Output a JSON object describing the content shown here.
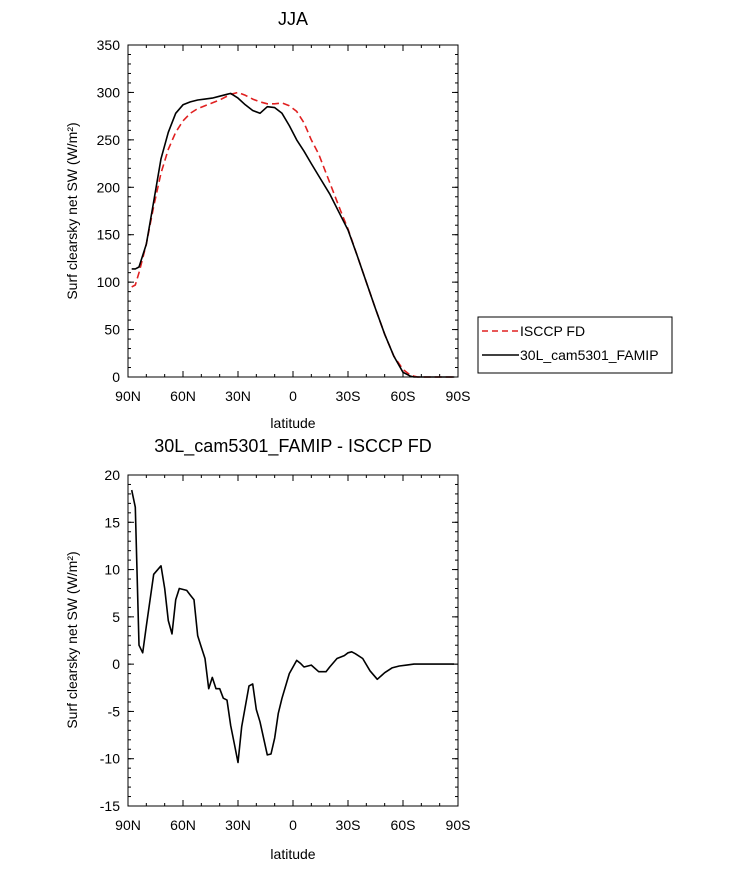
{
  "chart_data": [
    {
      "type": "line",
      "title": "JJA",
      "xlabel": "latitude",
      "ylabel": "Surf clearsky net SW (W/m²)",
      "ylim": [
        0,
        350
      ],
      "xlim": [
        90,
        -90
      ],
      "x_tick_labels": [
        "90N",
        "60N",
        "30N",
        "0",
        "30S",
        "60S",
        "90S"
      ],
      "y_tick_labels": [
        "0",
        "50",
        "100",
        "150",
        "200",
        "250",
        "300",
        "350"
      ],
      "legend_position": "right",
      "series": [
        {
          "name": "ISCCP FD",
          "color": "#e02020",
          "style": "dashed",
          "x": [
            88,
            86,
            84,
            80,
            76,
            72,
            68,
            64,
            60,
            56,
            52,
            48,
            44,
            40,
            36,
            34,
            30,
            26,
            22,
            18,
            14,
            10,
            6,
            2,
            -2,
            -6,
            -10,
            -14,
            -20,
            -26,
            -30,
            -35,
            -40,
            -45,
            -50,
            -55,
            -60,
            -64,
            -66,
            -68,
            -72,
            -76,
            -80,
            -84,
            -88
          ],
          "y": [
            95,
            97,
            110,
            140,
            180,
            215,
            240,
            258,
            270,
            278,
            283,
            286,
            289,
            292,
            296,
            298,
            300,
            297,
            293,
            290,
            288,
            288,
            289,
            286,
            280,
            268,
            250,
            235,
            205,
            175,
            156,
            128,
            100,
            72,
            45,
            22,
            8,
            2,
            1,
            0,
            0,
            0,
            0,
            0,
            0
          ]
        },
        {
          "name": "30L_cam5301_FAMIP",
          "color": "#000000",
          "style": "solid",
          "x": [
            88,
            86,
            84,
            80,
            76,
            72,
            68,
            64,
            60,
            56,
            52,
            48,
            44,
            40,
            36,
            34,
            30,
            26,
            22,
            18,
            14,
            10,
            6,
            2,
            -2,
            -6,
            -10,
            -14,
            -20,
            -26,
            -30,
            -35,
            -40,
            -45,
            -50,
            -55,
            -60,
            -64,
            -66,
            -68,
            -72,
            -76,
            -80,
            -84,
            -88
          ],
          "y": [
            114,
            114,
            116,
            140,
            185,
            230,
            258,
            278,
            287,
            290,
            292,
            293,
            294,
            296,
            298,
            299,
            294,
            287,
            281,
            278,
            285,
            284,
            278,
            265,
            250,
            238,
            225,
            212,
            193,
            170,
            155,
            128,
            100,
            72,
            45,
            22,
            5,
            1,
            0,
            0,
            0,
            0,
            0,
            0,
            0
          ]
        }
      ]
    },
    {
      "type": "line",
      "title": "30L_cam5301_FAMIP - ISCCP FD",
      "xlabel": "latitude",
      "ylabel": "Surf clearsky net SW (W/m²)",
      "ylim": [
        -15,
        20
      ],
      "xlim": [
        90,
        -90
      ],
      "x_tick_labels": [
        "90N",
        "60N",
        "30N",
        "0",
        "30S",
        "60S",
        "90S"
      ],
      "y_tick_labels": [
        "-15",
        "-10",
        "-5",
        "0",
        "5",
        "10",
        "15",
        "20"
      ],
      "series": [
        {
          "color": "#000000",
          "style": "solid",
          "x": [
            88,
            86,
            84,
            82,
            80,
            76,
            72,
            70,
            68,
            66,
            64,
            62,
            58,
            56,
            54,
            52,
            50,
            48,
            46,
            44,
            42,
            40,
            38,
            36,
            34,
            32,
            30,
            28,
            24,
            22,
            20,
            18,
            14,
            12,
            10,
            8,
            6,
            2,
            -2,
            -4,
            -6,
            -10,
            -14,
            -18,
            -20,
            -24,
            -28,
            -30,
            -32,
            -34,
            -38,
            -42,
            -46,
            -50,
            -54,
            -58,
            -62,
            -66,
            -70,
            -74,
            -78,
            -82,
            -88
          ],
          "y": [
            18.4,
            16.6,
            2,
            1.2,
            4,
            9.5,
            10.4,
            8,
            4.6,
            3.2,
            6.8,
            8,
            7.8,
            7.3,
            6.8,
            3,
            1.8,
            0.6,
            -2.6,
            -1.4,
            -2.6,
            -2.6,
            -3.6,
            -3.8,
            -6.5,
            -8.4,
            -10.4,
            -6.6,
            -2.3,
            -2.1,
            -4.8,
            -6.1,
            -9.6,
            -9.5,
            -7.8,
            -5.2,
            -3.6,
            -1,
            0.4,
            0.1,
            -0.3,
            -0.1,
            -0.8,
            -0.8,
            -0.3,
            0.6,
            0.9,
            1.2,
            1.3,
            1.1,
            0.6,
            -0.7,
            -1.6,
            -0.9,
            -0.4,
            -0.2,
            -0.1,
            0,
            0,
            0,
            0,
            0,
            0
          ]
        }
      ]
    }
  ]
}
